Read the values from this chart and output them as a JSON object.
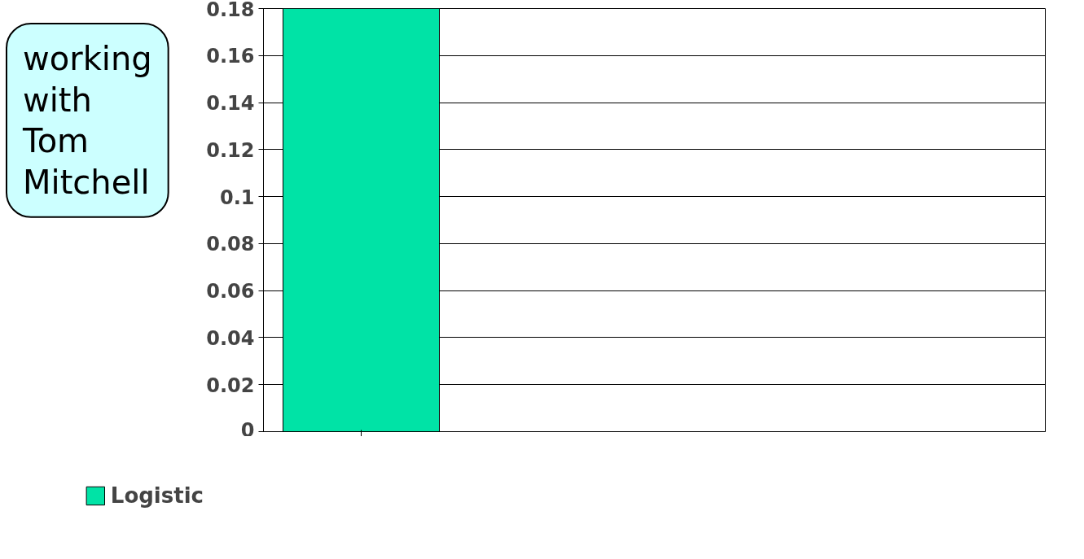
{
  "chart_data": {
    "type": "bar",
    "categories": [
      null
    ],
    "series": [
      {
        "name": "Logistic",
        "color": "#00e3a6",
        "values": [
          0.18
        ]
      }
    ],
    "ylim": [
      0,
      0.18
    ],
    "yticks": [
      0,
      0.02,
      0.04,
      0.06,
      0.08,
      0.1,
      0.12,
      0.14,
      0.16,
      0.18
    ],
    "grid": "y",
    "legend": "bottom",
    "annotations": [
      "working with Tom Mitchell"
    ]
  }
}
